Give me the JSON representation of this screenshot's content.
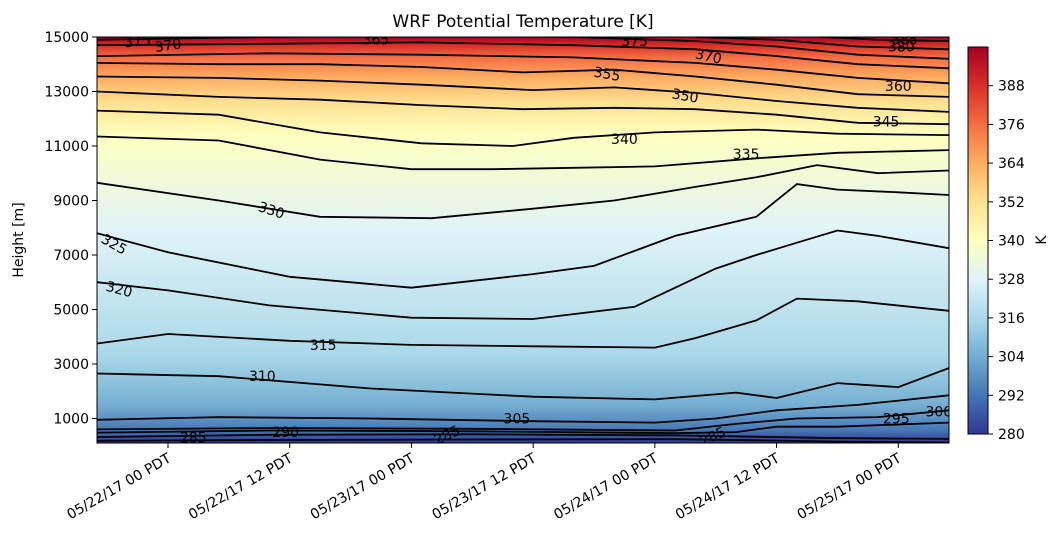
{
  "chart_data": {
    "type": "heatmap",
    "subtype": "filled-contour-with-isolines",
    "title": "WRF Potential Temperature [K]",
    "xlabel": "",
    "ylabel": "Height [m]",
    "x_ticks": [
      "05/22/17 00 PDT",
      "05/22/17 12 PDT",
      "05/23/17 00 PDT",
      "05/23/17 12 PDT",
      "05/24/17 00 PDT",
      "05/24/17 12 PDT",
      "05/25/17 00 PDT"
    ],
    "x_range_hours": [
      -7,
      77
    ],
    "y_ticks": [
      1000,
      3000,
      5000,
      7000,
      9000,
      11000,
      13000,
      15000
    ],
    "y_tick_labels": [
      "1000",
      "3000",
      "5000",
      "7000",
      "9000",
      "11000",
      "13000",
      "15000"
    ],
    "ylim": [
      100,
      15000
    ],
    "colorbar": {
      "label": "K",
      "ticks": [
        280,
        292,
        304,
        316,
        328,
        340,
        352,
        364,
        376,
        388
      ],
      "tick_labels": [
        "280",
        "292",
        "304",
        "316",
        "328",
        "340",
        "352",
        "364",
        "376",
        "388"
      ],
      "range": [
        280,
        400
      ],
      "colormap": "RdYlBu_r",
      "stops": [
        "#313695",
        "#4575b4",
        "#74add1",
        "#abd9e9",
        "#e0f3f8",
        "#ffffbf",
        "#fee090",
        "#fdae61",
        "#f46d43",
        "#d73027",
        "#a50026"
      ]
    },
    "contours": [
      {
        "level": 285,
        "label": "285",
        "points": [
          [
            -7,
            180
          ],
          [
            10,
            210
          ],
          [
            30,
            230
          ],
          [
            50,
            240
          ],
          [
            58,
            200
          ],
          [
            66,
            150
          ],
          [
            77,
            120
          ]
        ]
      },
      {
        "level": 290,
        "label": "290",
        "points": [
          [
            -7,
            320
          ],
          [
            10,
            400
          ],
          [
            30,
            420
          ],
          [
            50,
            380
          ],
          [
            58,
            330
          ],
          [
            66,
            280
          ],
          [
            77,
            250
          ]
        ]
      },
      {
        "level": 295,
        "label": "295",
        "points": [
          [
            -7,
            480
          ],
          [
            10,
            560
          ],
          [
            30,
            530
          ],
          [
            50,
            460
          ],
          [
            56,
            500
          ],
          [
            60,
            700
          ],
          [
            66,
            700
          ],
          [
            77,
            850
          ]
        ]
      },
      {
        "level": 300,
        "label": "300",
        "points": [
          [
            -7,
            600
          ],
          [
            10,
            650
          ],
          [
            30,
            620
          ],
          [
            50,
            560
          ],
          [
            56,
            800
          ],
          [
            62,
            1000
          ],
          [
            70,
            1050
          ],
          [
            77,
            1300
          ]
        ]
      },
      {
        "level": 305,
        "label": "305",
        "points": [
          [
            -7,
            950
          ],
          [
            5,
            1050
          ],
          [
            20,
            1000
          ],
          [
            36,
            900
          ],
          [
            48,
            850
          ],
          [
            54,
            1000
          ],
          [
            60,
            1300
          ],
          [
            68,
            1500
          ],
          [
            77,
            1850
          ]
        ]
      },
      {
        "level": 310,
        "label": "310",
        "points": [
          [
            -7,
            2650
          ],
          [
            5,
            2550
          ],
          [
            20,
            2100
          ],
          [
            36,
            1800
          ],
          [
            48,
            1700
          ],
          [
            56,
            1950
          ],
          [
            60,
            1750
          ],
          [
            66,
            2300
          ],
          [
            72,
            2150
          ],
          [
            77,
            2850
          ]
        ]
      },
      {
        "level": 315,
        "label": "315",
        "points": [
          [
            -7,
            3750
          ],
          [
            0,
            4100
          ],
          [
            12,
            3850
          ],
          [
            24,
            3700
          ],
          [
            36,
            3650
          ],
          [
            48,
            3600
          ],
          [
            52,
            3950
          ],
          [
            58,
            4600
          ],
          [
            62,
            5400
          ],
          [
            68,
            5300
          ],
          [
            77,
            4950
          ]
        ]
      },
      {
        "level": 320,
        "label": "320",
        "points": [
          [
            -7,
            6000
          ],
          [
            0,
            5700
          ],
          [
            10,
            5150
          ],
          [
            24,
            4700
          ],
          [
            36,
            4650
          ],
          [
            46,
            5100
          ],
          [
            54,
            6500
          ],
          [
            58,
            7000
          ],
          [
            62,
            7450
          ],
          [
            66,
            7900
          ],
          [
            70,
            7700
          ],
          [
            77,
            7250
          ]
        ]
      },
      {
        "level": 325,
        "label": "325",
        "points": [
          [
            -7,
            7800
          ],
          [
            0,
            7100
          ],
          [
            12,
            6200
          ],
          [
            24,
            5800
          ],
          [
            36,
            6300
          ],
          [
            42,
            6600
          ],
          [
            50,
            7700
          ],
          [
            58,
            8400
          ],
          [
            62,
            9600
          ],
          [
            66,
            9400
          ],
          [
            72,
            9300
          ],
          [
            77,
            9200
          ]
        ]
      },
      {
        "level": 330,
        "label": "330",
        "points": [
          [
            -7,
            9650
          ],
          [
            5,
            9000
          ],
          [
            15,
            8400
          ],
          [
            26,
            8350
          ],
          [
            36,
            8700
          ],
          [
            44,
            9000
          ],
          [
            52,
            9500
          ],
          [
            58,
            9850
          ],
          [
            64,
            10300
          ],
          [
            70,
            10000
          ],
          [
            77,
            10100
          ]
        ]
      },
      {
        "level": 335,
        "label": "335",
        "points": [
          [
            -7,
            11350
          ],
          [
            5,
            11200
          ],
          [
            15,
            10500
          ],
          [
            24,
            10150
          ],
          [
            32,
            10150
          ],
          [
            40,
            10200
          ],
          [
            48,
            10250
          ],
          [
            58,
            10550
          ],
          [
            66,
            10750
          ],
          [
            77,
            10850
          ]
        ]
      },
      {
        "level": 340,
        "label": "340",
        "points": [
          [
            -7,
            12300
          ],
          [
            5,
            12150
          ],
          [
            15,
            11500
          ],
          [
            25,
            11100
          ],
          [
            34,
            11000
          ],
          [
            40,
            11300
          ],
          [
            48,
            11500
          ],
          [
            58,
            11600
          ],
          [
            66,
            11450
          ],
          [
            77,
            11400
          ]
        ]
      },
      {
        "level": 345,
        "label": "345",
        "points": [
          [
            -7,
            13000
          ],
          [
            5,
            12800
          ],
          [
            15,
            12700
          ],
          [
            25,
            12500
          ],
          [
            35,
            12350
          ],
          [
            44,
            12400
          ],
          [
            52,
            12350
          ],
          [
            60,
            12150
          ],
          [
            68,
            11850
          ],
          [
            77,
            11800
          ]
        ]
      },
      {
        "level": 350,
        "label": "350",
        "points": [
          [
            -7,
            13550
          ],
          [
            5,
            13500
          ],
          [
            15,
            13400
          ],
          [
            25,
            13250
          ],
          [
            36,
            13050
          ],
          [
            44,
            13150
          ],
          [
            52,
            12950
          ],
          [
            60,
            12650
          ],
          [
            68,
            12400
          ],
          [
            77,
            12250
          ]
        ]
      },
      {
        "level": 355,
        "label": "355",
        "points": [
          [
            -7,
            14050
          ],
          [
            5,
            14000
          ],
          [
            15,
            14000
          ],
          [
            25,
            13900
          ],
          [
            35,
            13700
          ],
          [
            44,
            13800
          ],
          [
            52,
            13550
          ],
          [
            60,
            13250
          ],
          [
            68,
            12900
          ],
          [
            77,
            12800
          ]
        ]
      },
      {
        "level": 360,
        "label": "360",
        "points": [
          [
            -7,
            14300
          ],
          [
            10,
            14400
          ],
          [
            25,
            14350
          ],
          [
            40,
            14250
          ],
          [
            52,
            14050
          ],
          [
            60,
            13800
          ],
          [
            68,
            13500
          ],
          [
            77,
            13300
          ]
        ]
      },
      {
        "level": 365,
        "label": "365",
        "points": [
          [
            -7,
            14700
          ],
          [
            10,
            14750
          ],
          [
            25,
            14800
          ],
          [
            40,
            14700
          ],
          [
            52,
            14550
          ],
          [
            60,
            14300
          ],
          [
            68,
            14000
          ],
          [
            77,
            13850
          ]
        ]
      },
      {
        "level": 370,
        "label": "370",
        "points": [
          [
            -7,
            14900
          ],
          [
            10,
            15000
          ],
          [
            25,
            15050
          ],
          [
            40,
            15000
          ],
          [
            52,
            14850
          ],
          [
            60,
            14650
          ],
          [
            68,
            14350
          ],
          [
            77,
            14200
          ]
        ]
      },
      {
        "level": 375,
        "label": "375",
        "points": [
          [
            52,
            15000
          ],
          [
            60,
            14900
          ],
          [
            68,
            14650
          ],
          [
            77,
            14550
          ]
        ]
      },
      {
        "level": 380,
        "label": "380",
        "points": [
          [
            62,
            15050
          ],
          [
            70,
            14900
          ],
          [
            77,
            14850
          ]
        ]
      }
    ],
    "contour_labels": [
      {
        "text": "375",
        "x": -3.0,
        "y": 14850,
        "angle": -5
      },
      {
        "text": "370",
        "x": 0.0,
        "y": 14700,
        "angle": -8
      },
      {
        "text": "365",
        "x": 20.5,
        "y": 14900,
        "angle": 0
      },
      {
        "text": "375",
        "x": 46.0,
        "y": 14850,
        "angle": 0
      },
      {
        "text": "370",
        "x": 53.3,
        "y": 14300,
        "angle": 12
      },
      {
        "text": "380",
        "x": 72.3,
        "y": 14650,
        "angle": 0
      },
      {
        "text": "385",
        "x": 72.6,
        "y": 14900,
        "angle": 0
      },
      {
        "text": "355",
        "x": 43.3,
        "y": 13650,
        "angle": 10
      },
      {
        "text": "360",
        "x": 72.0,
        "y": 13200,
        "angle": 0
      },
      {
        "text": "350",
        "x": 51.0,
        "y": 12850,
        "angle": 10
      },
      {
        "text": "345",
        "x": 70.8,
        "y": 11900,
        "angle": 0
      },
      {
        "text": "340",
        "x": 45.0,
        "y": 11250,
        "angle": 0
      },
      {
        "text": "335",
        "x": 57.0,
        "y": 10700,
        "angle": 0
      },
      {
        "text": "330",
        "x": 10.2,
        "y": 8650,
        "angle": 18
      },
      {
        "text": "325",
        "x": -5.3,
        "y": 7400,
        "angle": 30
      },
      {
        "text": "320",
        "x": -4.8,
        "y": 5750,
        "angle": 15
      },
      {
        "text": "315",
        "x": 15.3,
        "y": 3700,
        "angle": 0
      },
      {
        "text": "310",
        "x": 9.3,
        "y": 2550,
        "angle": 0
      },
      {
        "text": "305",
        "x": 34.4,
        "y": 1000,
        "angle": 0
      },
      {
        "text": "300",
        "x": 76.0,
        "y": 1250,
        "angle": 0
      },
      {
        "text": "295",
        "x": 71.8,
        "y": 1000,
        "angle": 0
      },
      {
        "text": "290",
        "x": 11.6,
        "y": 500,
        "angle": 0
      },
      {
        "text": "285",
        "x": 2.5,
        "y": 300,
        "angle": 0
      },
      {
        "text": "285",
        "x": 27.5,
        "y": 400,
        "angle": -25
      },
      {
        "text": "285",
        "x": 53.7,
        "y": 350,
        "angle": -25
      }
    ]
  }
}
